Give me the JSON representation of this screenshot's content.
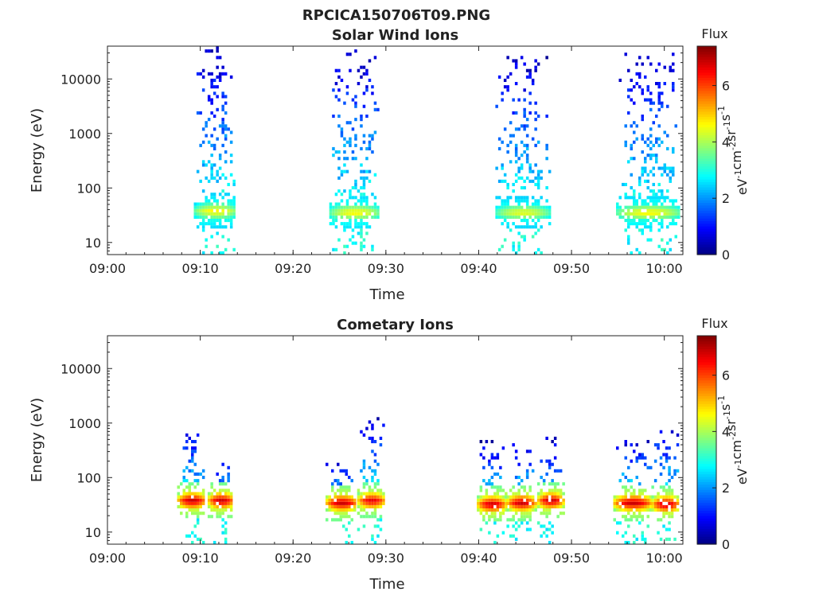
{
  "figure": {
    "file_title": "RPCICA150706T09.PNG"
  },
  "colorbar": {
    "title": "Flux",
    "unit_base": "eV",
    "unit_parts": [
      {
        "t": "eV",
        "s": "-1"
      },
      {
        "t": "cm",
        "s": "-2"
      },
      {
        "t": "sr",
        "s": "-1"
      },
      {
        "t": "s",
        "s": "-1"
      }
    ],
    "range": [
      0,
      7.4
    ],
    "ticks": [
      0,
      2,
      4,
      6
    ],
    "colormap": "jet"
  },
  "chart_data": [
    {
      "type": "heatmap",
      "title": "Solar Wind Ions",
      "xlabel": "Time",
      "ylabel": "Energy (eV)",
      "x_range_min": [
        0,
        62
      ],
      "y_range": [
        6,
        40000
      ],
      "y_scale": "log",
      "x_ticks": [
        0,
        10,
        20,
        30,
        40,
        50,
        60
      ],
      "x_tick_labels": [
        "09:00",
        "09:10",
        "09:20",
        "09:30",
        "09:40",
        "09:50",
        "10:00"
      ],
      "y_ticks": [
        10,
        100,
        1000,
        10000
      ],
      "y_tick_labels": [
        "10",
        "100",
        "1000",
        "10000"
      ],
      "bursts": [
        {
          "t": [
            9.3,
            13.8
          ],
          "peak_energy": 35,
          "peak_flux": 4.8,
          "max_energy": 35000
        },
        {
          "t": [
            23.9,
            29.2
          ],
          "peak_energy": 33,
          "peak_flux": 4.8,
          "max_energy": 32000
        },
        {
          "t": [
            41.8,
            47.5
          ],
          "peak_energy": 33,
          "peak_flux": 4.6,
          "max_energy": 24000
        },
        {
          "t": [
            54.8,
            61.5
          ],
          "peak_energy": 33,
          "peak_flux": 4.8,
          "max_energy": 34000
        }
      ]
    },
    {
      "type": "heatmap",
      "title": "Cometary Ions",
      "xlabel": "Time",
      "ylabel": "Energy (eV)",
      "x_range_min": [
        0,
        62
      ],
      "y_range": [
        6,
        40000
      ],
      "y_scale": "log",
      "x_ticks": [
        0,
        10,
        20,
        30,
        40,
        50,
        60
      ],
      "x_tick_labels": [
        "09:00",
        "09:10",
        "09:20",
        "09:30",
        "09:40",
        "09:50",
        "10:00"
      ],
      "y_ticks": [
        10,
        100,
        1000,
        10000
      ],
      "y_tick_labels": [
        "10",
        "100",
        "1000",
        "10000"
      ],
      "bursts": [
        {
          "t": [
            7.5,
            10.5
          ],
          "peak_energy": 35,
          "peak_flux": 7.0,
          "max_energy": 800
        },
        {
          "t": [
            10.8,
            13.5
          ],
          "peak_energy": 35,
          "peak_flux": 7.0,
          "max_energy": 220
        },
        {
          "t": [
            23.5,
            26.8
          ],
          "peak_energy": 32,
          "peak_flux": 7.0,
          "max_energy": 180
        },
        {
          "t": [
            26.9,
            29.8
          ],
          "peak_energy": 35,
          "peak_flux": 6.8,
          "max_energy": 1300
        },
        {
          "t": [
            39.8,
            42.8
          ],
          "peak_energy": 30,
          "peak_flux": 7.0,
          "max_energy": 430
        },
        {
          "t": [
            43.0,
            46.0
          ],
          "peak_energy": 32,
          "peak_flux": 7.0,
          "max_energy": 450
        },
        {
          "t": [
            46.3,
            49.0
          ],
          "peak_energy": 35,
          "peak_flux": 7.0,
          "max_energy": 500
        },
        {
          "t": [
            54.5,
            58.5
          ],
          "peak_energy": 32,
          "peak_flux": 7.0,
          "max_energy": 600
        },
        {
          "t": [
            58.6,
            61.5
          ],
          "peak_energy": 30,
          "peak_flux": 7.0,
          "max_energy": 950
        }
      ]
    }
  ]
}
